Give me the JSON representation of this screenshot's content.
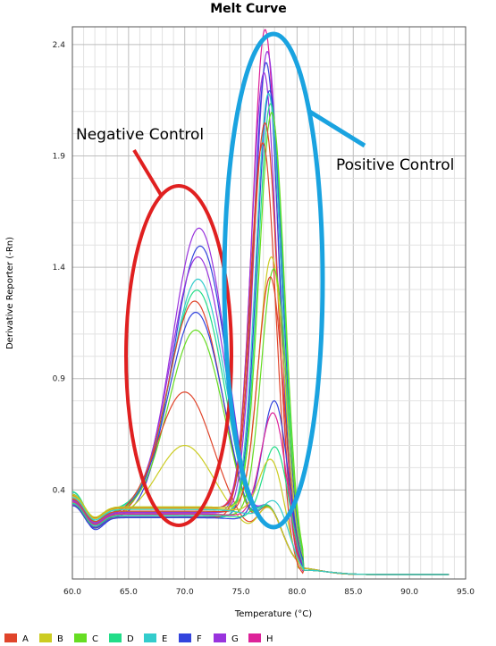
{
  "chart_data": {
    "type": "line",
    "title": "Melt Curve",
    "xlabel": "Temperature (°C)",
    "ylabel": "Derivative Reporter (-Rn)",
    "xlim": [
      60,
      95
    ],
    "ylim": [
      0,
      2.48
    ],
    "x_ticks": [
      "60.0",
      "65.0",
      "70.0",
      "75.0",
      "80.0",
      "85.0",
      "90.0",
      "95.0"
    ],
    "y_ticks": [
      "2.4",
      "1.9",
      "1.4",
      "0.9",
      "0.4"
    ],
    "y_tick_values": [
      2.4,
      1.9,
      1.4,
      0.9,
      0.4
    ],
    "grid": true,
    "legend_position": "bottom",
    "legend": [
      {
        "label": "A",
        "color": "#e0442a"
      },
      {
        "label": "B",
        "color": "#cccc22"
      },
      {
        "label": "C",
        "color": "#66dd22"
      },
      {
        "label": "D",
        "color": "#22dd88"
      },
      {
        "label": "E",
        "color": "#33cccc"
      },
      {
        "label": "F",
        "color": "#3344dd"
      },
      {
        "label": "G",
        "color": "#9933dd"
      },
      {
        "label": "H",
        "color": "#dd2299"
      }
    ],
    "annotations": [
      {
        "text": "Negative Control",
        "color": "#e02020"
      },
      {
        "text": "Positive Control",
        "color": "#1aa3e0"
      }
    ],
    "series": [
      {
        "color": "#9933dd",
        "kind": "neg",
        "peak_x": 71.3,
        "peak_y": 1.58
      },
      {
        "color": "#3344dd",
        "kind": "neg",
        "peak_x": 71.4,
        "peak_y": 1.5
      },
      {
        "color": "#9933dd",
        "kind": "neg",
        "peak_x": 71.2,
        "peak_y": 1.45
      },
      {
        "color": "#33cccc",
        "kind": "neg",
        "peak_x": 71.2,
        "peak_y": 1.35
      },
      {
        "color": "#22dd88",
        "kind": "neg",
        "peak_x": 71.1,
        "peak_y": 1.3
      },
      {
        "color": "#e0442a",
        "kind": "neg",
        "peak_x": 70.9,
        "peak_y": 1.25
      },
      {
        "color": "#3344dd",
        "kind": "neg",
        "peak_x": 71.0,
        "peak_y": 1.2
      },
      {
        "color": "#66dd22",
        "kind": "neg",
        "peak_x": 71.0,
        "peak_y": 1.12
      },
      {
        "color": "#e0442a",
        "kind": "neg",
        "peak_x": 70.0,
        "peak_y": 0.84
      },
      {
        "color": "#cccc22",
        "kind": "neg",
        "peak_x": 70.0,
        "peak_y": 0.6
      },
      {
        "color": "#dd2299",
        "kind": "pos",
        "peak_x": 77.2,
        "peak_y": 2.44
      },
      {
        "color": "#9933dd",
        "kind": "pos",
        "peak_x": 77.4,
        "peak_y": 2.36
      },
      {
        "color": "#3344dd",
        "kind": "pos",
        "peak_x": 77.3,
        "peak_y": 2.3
      },
      {
        "color": "#9933dd",
        "kind": "pos",
        "peak_x": 77.1,
        "peak_y": 2.24
      },
      {
        "color": "#3344dd",
        "kind": "pos",
        "peak_x": 77.6,
        "peak_y": 2.2
      },
      {
        "color": "#33cccc",
        "kind": "pos",
        "peak_x": 77.5,
        "peak_y": 2.18
      },
      {
        "color": "#22dd88",
        "kind": "pos",
        "peak_x": 77.7,
        "peak_y": 2.15
      },
      {
        "color": "#66dd22",
        "kind": "pos",
        "peak_x": 77.8,
        "peak_y": 2.12
      },
      {
        "color": "#e0442a",
        "kind": "pos",
        "peak_x": 77.2,
        "peak_y": 2.02
      },
      {
        "color": "#e0442a",
        "kind": "pos",
        "peak_x": 77.0,
        "peak_y": 1.92
      },
      {
        "color": "#cccc22",
        "kind": "pos",
        "peak_x": 77.8,
        "peak_y": 1.47
      },
      {
        "color": "#66dd22",
        "kind": "pos",
        "peak_x": 78.0,
        "peak_y": 1.43
      },
      {
        "color": "#e0442a",
        "kind": "pos",
        "peak_x": 77.7,
        "peak_y": 1.37
      },
      {
        "color": "#3344dd",
        "kind": "pos",
        "peak_x": 78.1,
        "peak_y": 0.84
      },
      {
        "color": "#dd2299",
        "kind": "pos",
        "peak_x": 78.0,
        "peak_y": 0.78
      },
      {
        "color": "#22dd88",
        "kind": "pos",
        "peak_x": 78.2,
        "peak_y": 0.64
      },
      {
        "color": "#cccc22",
        "kind": "pos",
        "peak_x": 77.9,
        "peak_y": 0.56
      },
      {
        "color": "#33cccc",
        "kind": "pos",
        "peak_x": 78.3,
        "peak_y": 0.4
      }
    ]
  }
}
